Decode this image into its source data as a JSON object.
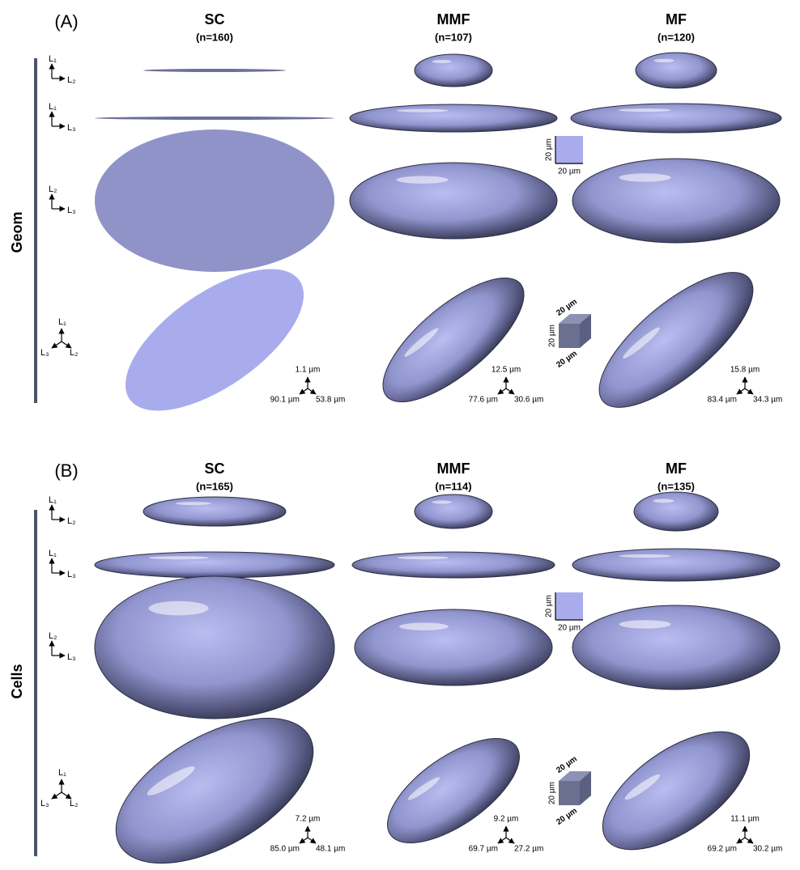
{
  "view_axes": [
    [
      "L₁",
      "L₂"
    ],
    [
      "L₁",
      "L₃"
    ],
    [
      "L₂",
      "L₃"
    ],
    [
      "L₁",
      "L₃",
      "L₂"
    ]
  ],
  "panels": [
    {
      "label": "(A)",
      "group": "Geom",
      "columns": [
        {
          "name": "SC",
          "n": "(n=160)",
          "dims": [
            "1.1 µm",
            "90.1 µm",
            "53.8 µm"
          ]
        },
        {
          "name": "MMF",
          "n": "(n=107)",
          "dims": [
            "12.5 µm",
            "77.6 µm",
            "30.6 µm"
          ]
        },
        {
          "name": "MF",
          "n": "(n=120)",
          "dims": [
            "15.8 µm",
            "83.4 µm",
            "34.3 µm"
          ]
        }
      ],
      "scale_square": [
        "20 µm",
        "20 µm"
      ],
      "scale_cube": [
        "20 µm",
        "20 µm",
        "20 µm"
      ]
    },
    {
      "label": "(B)",
      "group": "Cells",
      "columns": [
        {
          "name": "SC",
          "n": "(n=165)",
          "dims": [
            "7.2 µm",
            "85.0 µm",
            "48.1 µm"
          ]
        },
        {
          "name": "MMF",
          "n": "(n=114)",
          "dims": [
            "9.2 µm",
            "69.7 µm",
            "27.2 µm"
          ]
        },
        {
          "name": "MF",
          "n": "(n=135)",
          "dims": [
            "11.1 µm",
            "69.2 µm",
            "30.2 µm"
          ]
        }
      ],
      "scale_square": [
        "20 µm",
        "20 µm"
      ],
      "scale_cube": [
        "20 µm",
        "20 µm",
        "20 µm"
      ]
    }
  ]
}
